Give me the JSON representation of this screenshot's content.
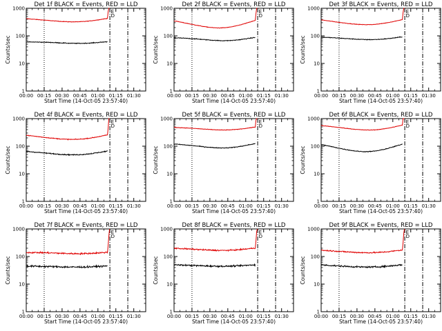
{
  "chart_data": {
    "type": "line",
    "layout": "3x3 grid",
    "y_scale": "log",
    "ylim": [
      1,
      1000
    ],
    "y_tick_labels": [
      "1",
      "10",
      "100",
      "1000"
    ],
    "ylabel": "Counts/sec",
    "xlabel": "Start Time (14-Oct-05 23:57:40)",
    "xlim_minutes": [
      0,
      100
    ],
    "x_tick_labels": [
      "00:00",
      "00:15",
      "00:30",
      "00:45",
      "01:00",
      "01:15",
      "01:30"
    ],
    "x_tick_minutes": [
      0,
      15,
      30,
      45,
      60,
      75,
      90
    ],
    "event_flag_label": "E",
    "event_flag_label2": "D",
    "dotted_line_minute": 15,
    "dashdot_line_minutes": [
      70,
      85
    ],
    "curve_end_minute": 68,
    "colors": {
      "events": "#000000",
      "lld": "#e00000"
    },
    "panels": [
      {
        "title": "Det 1f BLACK = Events, RED = LLD",
        "events": {
          "base": 55,
          "ends": 60,
          "bump": 0.04,
          "noise": 0.03
        },
        "lld": {
          "base": 330,
          "ends": 420,
          "bump": 0.04,
          "noise": 0.02
        }
      },
      {
        "title": "Det 2f BLACK = Events, RED = LLD",
        "events": {
          "base": 70,
          "ends": 85,
          "bump": 0.06,
          "noise": 0.03
        },
        "lld": {
          "base": 200,
          "ends": 350,
          "bump": 0.06,
          "noise": 0.02
        }
      },
      {
        "title": "Det 3f BLACK = Events, RED = LLD",
        "events": {
          "base": 75,
          "ends": 90,
          "bump": 0.04,
          "noise": 0.03
        },
        "lld": {
          "base": 260,
          "ends": 380,
          "bump": 0.04,
          "noise": 0.02
        }
      },
      {
        "title": "Det 4f BLACK = Events, RED = LLD",
        "events": {
          "base": 50,
          "ends": 65,
          "bump": 0.04,
          "noise": 0.04
        },
        "lld": {
          "base": 180,
          "ends": 250,
          "bump": 0.04,
          "noise": 0.03
        }
      },
      {
        "title": "Det 5f BLACK = Events, RED = LLD",
        "events": {
          "base": 90,
          "ends": 120,
          "bump": 0.06,
          "noise": 0.03
        },
        "lld": {
          "base": 400,
          "ends": 480,
          "bump": 0.05,
          "noise": 0.02
        }
      },
      {
        "title": "Det 6f BLACK = Events, RED = LLD",
        "events": {
          "base": 65,
          "ends": 115,
          "bump": 0.05,
          "noise": 0.03
        },
        "lld": {
          "base": 400,
          "ends": 560,
          "bump": 0.06,
          "noise": 0.02
        }
      },
      {
        "title": "Det 7f BLACK = Events, RED = LLD",
        "events": {
          "base": 42,
          "ends": 45,
          "bump": 0.02,
          "noise": 0.07
        },
        "lld": {
          "base": 130,
          "ends": 140,
          "bump": 0.03,
          "noise": 0.06
        }
      },
      {
        "title": "Det 8f BLACK = Events, RED = LLD",
        "events": {
          "base": 45,
          "ends": 50,
          "bump": 0.02,
          "noise": 0.06
        },
        "lld": {
          "base": 170,
          "ends": 200,
          "bump": 0.03,
          "noise": 0.05
        }
      },
      {
        "title": "Det 9f BLACK = Events, RED = LLD",
        "events": {
          "base": 42,
          "ends": 50,
          "bump": 0.02,
          "noise": 0.06
        },
        "lld": {
          "base": 140,
          "ends": 170,
          "bump": 0.03,
          "noise": 0.05
        }
      }
    ]
  }
}
